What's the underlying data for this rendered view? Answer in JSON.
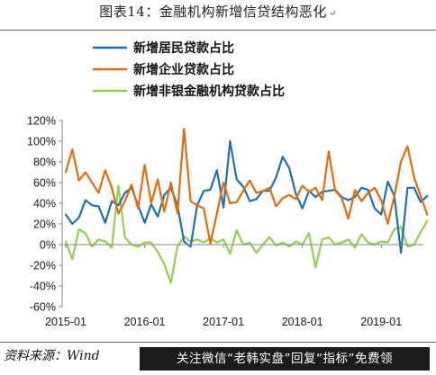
{
  "figure": {
    "title": "图表14：金融机构新增信贷结构恶化",
    "title_mark": "↵",
    "source": "资料来源：Wind",
    "banner": "关注微信“老韩实盘”回复“指标”免费领"
  },
  "chart_data": {
    "type": "line",
    "title": "",
    "xlabel": "",
    "ylabel": "",
    "ylim": [
      -0.6,
      1.2
    ],
    "yticks": [
      -0.6,
      -0.4,
      -0.2,
      0,
      0.2,
      0.4,
      0.6,
      0.8,
      1.0,
      1.2
    ],
    "ytick_labels": [
      "-60%",
      "-40%",
      "-20%",
      "0%",
      "20%",
      "40%",
      "60%",
      "80%",
      "100%",
      "120%"
    ],
    "xticks": [
      "2015-01",
      "2016-01",
      "2017-01",
      "2018-01",
      "2019-01"
    ],
    "x_start": "2015-01",
    "x_end": "2019-07",
    "grid": false,
    "legend_position": "top",
    "series": [
      {
        "name": "新增居民贷款占比",
        "color": "#1f6fb4",
        "values": [
          0.29,
          0.2,
          0.26,
          0.43,
          0.38,
          0.37,
          0.21,
          0.42,
          0.38,
          0.5,
          0.55,
          0.38,
          0.21,
          0.39,
          0.27,
          0.48,
          0.55,
          0.38,
          0.03,
          -0.02,
          0.38,
          0.52,
          0.53,
          0.72,
          0.36,
          1.0,
          0.63,
          0.56,
          0.42,
          0.44,
          0.52,
          0.52,
          0.65,
          0.85,
          0.74,
          0.49,
          0.35,
          0.52,
          0.46,
          0.51,
          0.52,
          0.53,
          0.46,
          0.43,
          0.46,
          0.55,
          0.53,
          0.35,
          0.29,
          0.61,
          0.47,
          -0.08,
          0.55,
          0.55,
          0.41,
          0.47
        ]
      },
      {
        "name": "新增企业贷款占比",
        "color": "#e46c0a",
        "values": [
          0.7,
          0.92,
          0.62,
          0.7,
          0.6,
          0.5,
          0.72,
          0.55,
          0.3,
          0.42,
          0.58,
          0.35,
          0.77,
          0.4,
          0.63,
          0.32,
          0.6,
          0.3,
          1.12,
          0.42,
          0.38,
          0.35,
          0.01,
          0.3,
          0.6,
          0.4,
          0.41,
          0.52,
          0.62,
          0.5,
          0.52,
          0.55,
          0.37,
          0.45,
          0.48,
          0.44,
          0.57,
          0.51,
          0.55,
          0.43,
          0.9,
          0.52,
          0.45,
          0.25,
          0.53,
          0.42,
          0.5,
          0.55,
          0.43,
          0.2,
          0.47,
          0.8,
          0.95,
          0.65,
          0.47,
          0.29
        ]
      },
      {
        "name": "新增非银金融机构贷款占比",
        "color": "#92d050",
        "values": [
          0.03,
          -0.14,
          0.15,
          0.11,
          -0.02,
          0.05,
          0.03,
          -0.03,
          0.57,
          0.07,
          0.0,
          -0.02,
          0.02,
          0.02,
          -0.07,
          -0.19,
          -0.37,
          -0.02,
          0.08,
          0.03,
          0.05,
          0.02,
          0.06,
          0.02,
          0.05,
          -0.09,
          0.14,
          0.0,
          0.02,
          -0.08,
          0.0,
          0.07,
          -0.01,
          0.02,
          -0.02,
          0.03,
          0.0,
          0.11,
          -0.22,
          0.05,
          0.07,
          0.0,
          0.02,
          0.05,
          -0.03,
          0.1,
          0.02,
          0.0,
          0.03,
          0.02,
          0.15,
          0.17,
          -0.02,
          0.0,
          0.12,
          0.23
        ]
      }
    ]
  }
}
